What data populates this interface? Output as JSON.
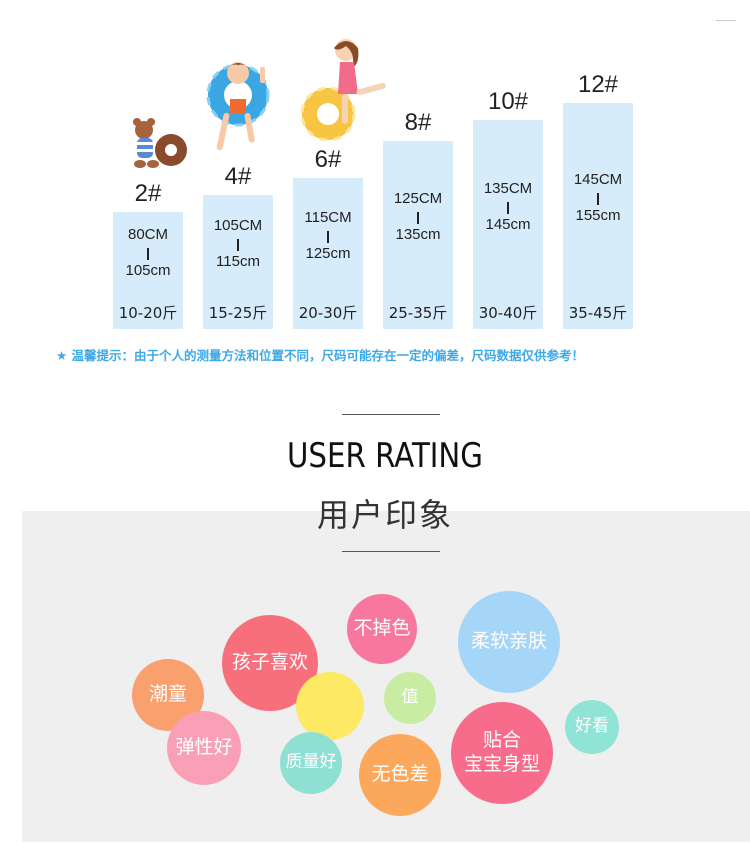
{
  "size_chart": [
    {
      "size": "2#",
      "top": "80CM",
      "bottom": "105cm",
      "weight": "10-20斤"
    },
    {
      "size": "4#",
      "top": "105CM",
      "bottom": "115cm",
      "weight": "15-25斤"
    },
    {
      "size": "6#",
      "top": "115CM",
      "bottom": "125cm",
      "weight": "20-30斤"
    },
    {
      "size": "8#",
      "top": "125CM",
      "bottom": "135cm",
      "weight": "25-35斤"
    },
    {
      "size": "10#",
      "top": "135CM",
      "bottom": "145cm",
      "weight": "30-40斤"
    },
    {
      "size": "12#",
      "top": "145CM",
      "bottom": "155cm",
      "weight": "35-45斤"
    }
  ],
  "note": "★ 温馨提示：由于个人的测量方法和位置不同，尺码可能存在一定的偏差，尺码数据仅供参考！",
  "rating": {
    "title_en": "USER RATING",
    "title_cn": "用户印象"
  },
  "bubbles": [
    {
      "label": "潮童",
      "color": "#fa9f6e"
    },
    {
      "label": "孩子喜欢",
      "color": "#f86f7c"
    },
    {
      "label": "弹性好",
      "color": "#f9a0b6"
    },
    {
      "label": "",
      "color": "#fde964"
    },
    {
      "label": "不掉色",
      "color": "#f7779e"
    },
    {
      "label": "值",
      "color": "#c9eca3"
    },
    {
      "label": "质量好",
      "color": "#8ee0d3"
    },
    {
      "label": "无色差",
      "color": "#fca85c"
    },
    {
      "label": "柔软亲肤",
      "color": "#a5d6f7"
    },
    {
      "label": "贴合\n宝宝身型",
      "color": "#f66c8a"
    },
    {
      "label": "好看",
      "color": "#8fe4d6"
    }
  ],
  "colors": {
    "bar": "#d7ecfb",
    "note": "#3fa9e8",
    "panel": "#efefef"
  }
}
